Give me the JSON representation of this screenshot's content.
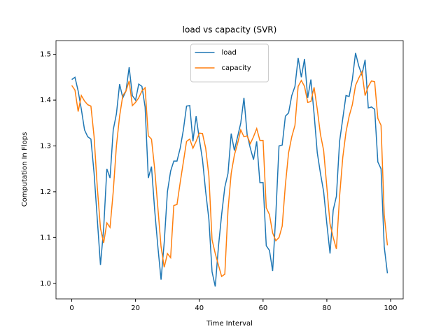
{
  "chart_data": {
    "type": "line",
    "title": "load vs capacity (SVR)",
    "x_label": "Time Interval",
    "y_label": "Computation In Flops",
    "x": [
      0,
      1,
      2,
      3,
      4,
      5,
      6,
      7,
      8,
      9,
      10,
      11,
      12,
      13,
      14,
      15,
      16,
      17,
      18,
      19,
      20,
      21,
      22,
      23,
      24,
      25,
      26,
      27,
      28,
      29,
      30,
      31,
      32,
      33,
      34,
      35,
      36,
      37,
      38,
      39,
      40,
      41,
      42,
      43,
      44,
      45,
      46,
      47,
      48,
      49,
      50,
      51,
      52,
      53,
      54,
      55,
      56,
      57,
      58,
      59,
      60,
      61,
      62,
      63,
      64,
      65,
      66,
      67,
      68,
      69,
      70,
      71,
      72,
      73,
      74,
      75,
      76,
      77,
      78,
      79,
      80,
      81,
      82,
      83,
      84,
      85,
      86,
      87,
      88,
      89,
      90,
      91,
      92,
      93,
      94,
      95,
      96,
      97,
      98,
      99
    ],
    "series": [
      {
        "name": "load",
        "color": "#1f77b4",
        "values": [
          1.445,
          1.45,
          1.42,
          1.38,
          1.335,
          1.32,
          1.315,
          1.24,
          1.14,
          1.04,
          1.12,
          1.25,
          1.23,
          1.335,
          1.37,
          1.435,
          1.405,
          1.42,
          1.472,
          1.41,
          1.4,
          1.435,
          1.43,
          1.385,
          1.23,
          1.255,
          1.16,
          1.08,
          1.008,
          1.09,
          1.2,
          1.245,
          1.267,
          1.267,
          1.295,
          1.335,
          1.387,
          1.388,
          1.31,
          1.365,
          1.315,
          1.27,
          1.2,
          1.14,
          1.025,
          0.993,
          1.08,
          1.15,
          1.21,
          1.24,
          1.327,
          1.29,
          1.32,
          1.35,
          1.405,
          1.325,
          1.295,
          1.27,
          1.31,
          1.22,
          1.22,
          1.082,
          1.072,
          1.027,
          1.15,
          1.3,
          1.302,
          1.365,
          1.372,
          1.41,
          1.43,
          1.492,
          1.45,
          1.49,
          1.405,
          1.445,
          1.37,
          1.285,
          1.24,
          1.2,
          1.13,
          1.065,
          1.16,
          1.19,
          1.31,
          1.36,
          1.41,
          1.408,
          1.445,
          1.503,
          1.475,
          1.455,
          1.488,
          1.383,
          1.385,
          1.38,
          1.265,
          1.25,
          1.08,
          1.022
        ]
      },
      {
        "name": "capacity",
        "color": "#ff7f0e",
        "values": [
          1.432,
          1.422,
          1.375,
          1.41,
          1.398,
          1.39,
          1.387,
          1.32,
          1.21,
          1.12,
          1.088,
          1.132,
          1.122,
          1.2,
          1.3,
          1.365,
          1.41,
          1.42,
          1.442,
          1.388,
          1.395,
          1.405,
          1.42,
          1.427,
          1.322,
          1.315,
          1.25,
          1.165,
          1.08,
          1.035,
          1.065,
          1.056,
          1.17,
          1.172,
          1.22,
          1.265,
          1.31,
          1.315,
          1.295,
          1.31,
          1.328,
          1.327,
          1.295,
          1.235,
          1.095,
          1.065,
          1.04,
          1.015,
          1.02,
          1.16,
          1.24,
          1.28,
          1.305,
          1.335,
          1.32,
          1.322,
          1.305,
          1.32,
          1.338,
          1.312,
          1.312,
          1.165,
          1.15,
          1.11,
          1.093,
          1.1,
          1.125,
          1.215,
          1.285,
          1.32,
          1.345,
          1.43,
          1.443,
          1.43,
          1.395,
          1.397,
          1.428,
          1.38,
          1.325,
          1.29,
          1.21,
          1.13,
          1.1,
          1.075,
          1.19,
          1.275,
          1.33,
          1.365,
          1.39,
          1.432,
          1.448,
          1.462,
          1.41,
          1.43,
          1.442,
          1.44,
          1.36,
          1.345,
          1.15,
          1.083
        ]
      }
    ],
    "xlim": [
      -4.95,
      103.95
    ],
    "ylim": [
      0.966,
      1.53
    ],
    "xticks": [
      0,
      20,
      40,
      60,
      80,
      100
    ],
    "yticks": [
      {
        "value": 1.0,
        "label": "1.0"
      },
      1.1,
      1.2,
      1.3,
      1.4,
      1.5
    ],
    "legend": "upper center",
    "grid": false
  }
}
